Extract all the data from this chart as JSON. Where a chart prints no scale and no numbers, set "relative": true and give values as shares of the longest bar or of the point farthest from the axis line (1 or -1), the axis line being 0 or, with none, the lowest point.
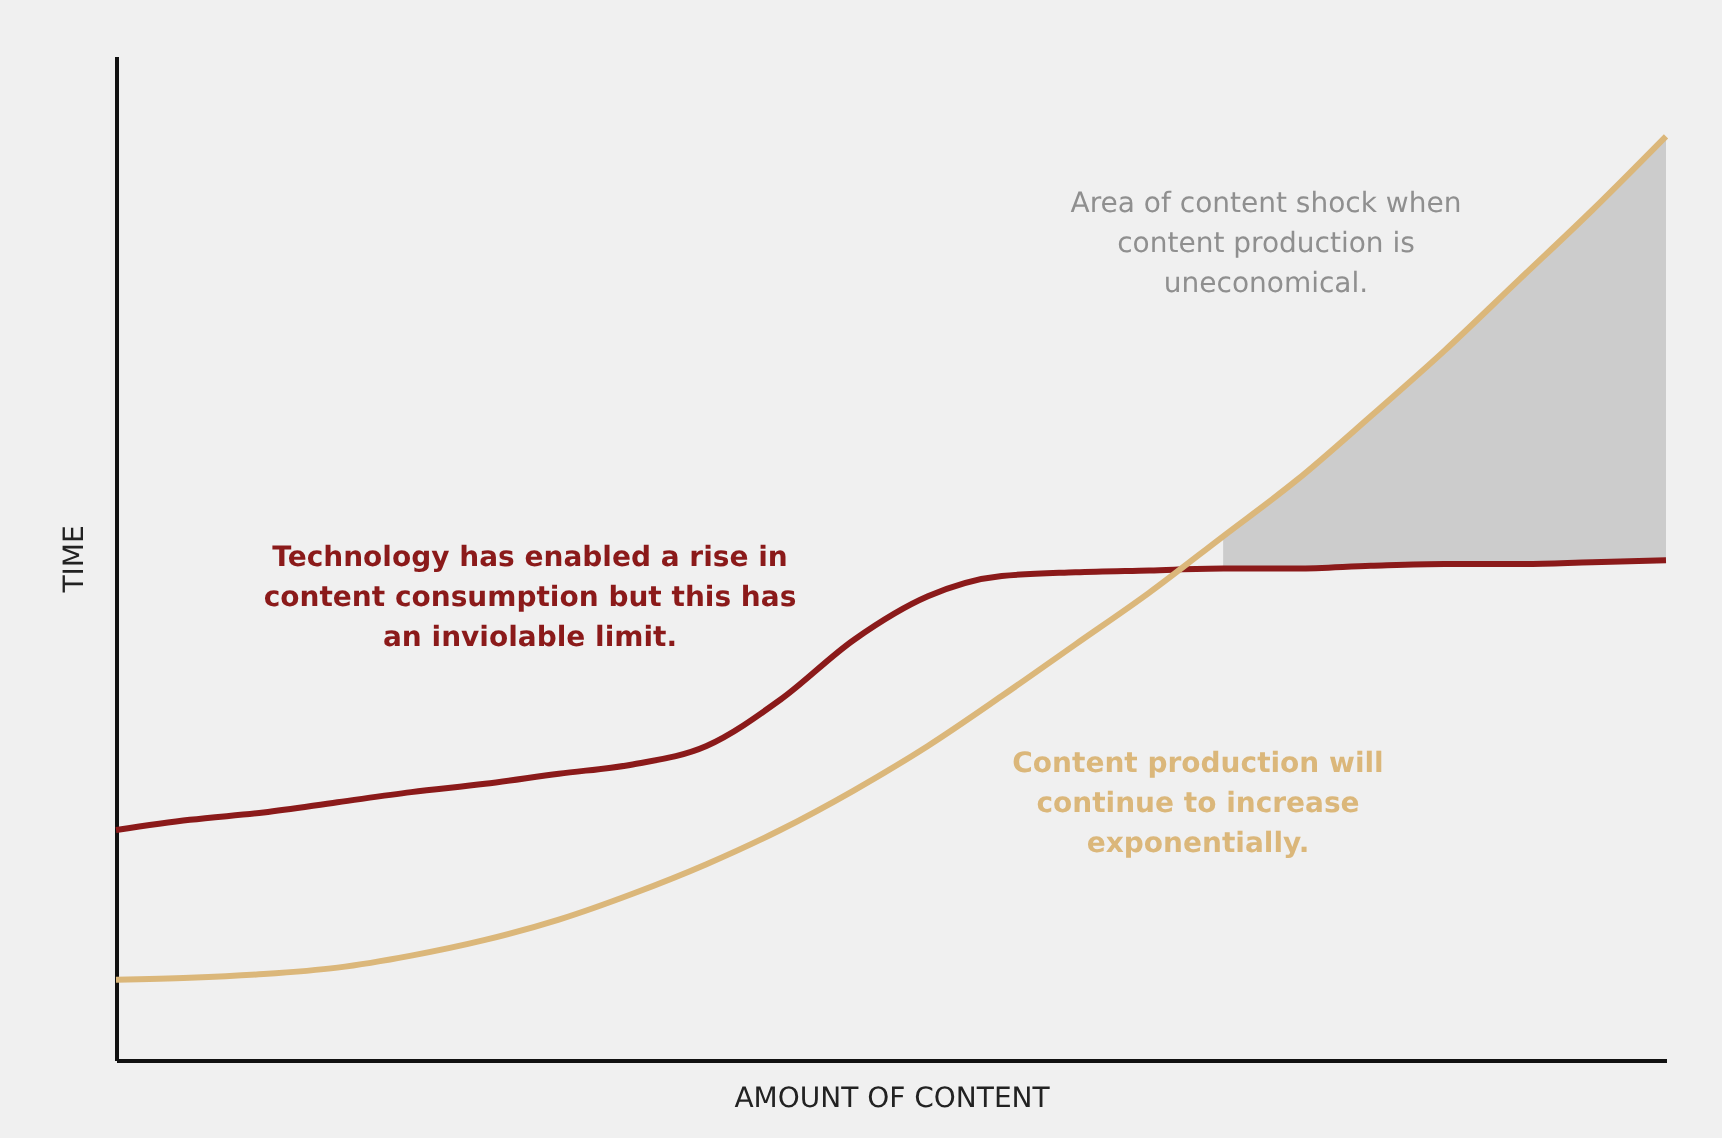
{
  "chart_data": {
    "type": "line",
    "relative": true,
    "xlabel": "AMOUNT OF CONTENT",
    "ylabel": "TIME",
    "categories": [
      null,
      null,
      null,
      null,
      null,
      null,
      null,
      null,
      null,
      null,
      null,
      null,
      null,
      null,
      null,
      null,
      null,
      null,
      null,
      null,
      null,
      null
    ],
    "series": [
      {
        "color": "#8b1a1a",
        "values": [
          0.249,
          0.26,
          0.268,
          0.279,
          0.29,
          0.299,
          0.31,
          0.32,
          0.34,
          0.39,
          0.455,
          0.502,
          0.524,
          0.528,
          0.53,
          0.532,
          0.532,
          0.535,
          0.537,
          0.537,
          0.539,
          0.541
        ]
      },
      {
        "color": "#dbb77a",
        "values": [
          0.087,
          0.089,
          0.093,
          0.1,
          0.113,
          0.13,
          0.152,
          0.18,
          0.212,
          0.249,
          0.292,
          0.34,
          0.394,
          0.45,
          0.506,
          0.567,
          0.628,
          0.697,
          0.768,
          0.844,
          0.92,
          1.0
        ],
        "lower": [
          null,
          null,
          null,
          null,
          null,
          null,
          null,
          null,
          null,
          null,
          null,
          null,
          null,
          null,
          null,
          0.532,
          0.532,
          0.535,
          0.537,
          0.537,
          0.539,
          0.541
        ],
        "upper": [
          null,
          null,
          null,
          null,
          null,
          null,
          null,
          null,
          null,
          null,
          null,
          null,
          null,
          null,
          null,
          0.567,
          0.628,
          0.697,
          0.768,
          0.844,
          0.92,
          1.0
        ]
      }
    ],
    "annotations": [
      "Technology has enabled a rise in\ncontent consumption but this has\nan inviolable limit.",
      "Content production will\ncontinue to increase\nexponentially.",
      "Area of content shock when\ncontent production is\nuneconomical."
    ],
    "line_style": "solid"
  }
}
